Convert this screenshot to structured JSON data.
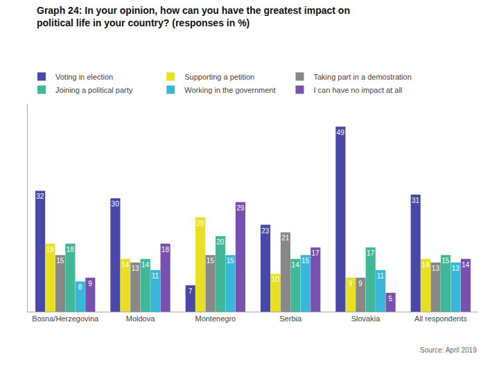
{
  "chart_data": {
    "type": "bar",
    "title": "Graph 24: In your opinion, how can you have the greatest impact on\npolitical life in your country? (responses in %)",
    "categories": [
      "Bosna/Herzegovina",
      "Moldova",
      "Montenegro",
      "Serbia",
      "Slovakia",
      "All respondents"
    ],
    "series": [
      {
        "name": "Voting in election",
        "color": "#4848a8",
        "values": [
          32,
          30,
          7,
          23,
          49,
          31
        ]
      },
      {
        "name": "Supporting a petition",
        "color": "#e8e020",
        "values": [
          18,
          14,
          25,
          10,
          9,
          14
        ]
      },
      {
        "name": "Taking part in a demostration",
        "color": "#888888",
        "values": [
          15,
          13,
          15,
          21,
          9,
          13
        ]
      },
      {
        "name": "Joining a political party",
        "color": "#40b898",
        "values": [
          18,
          14,
          20,
          14,
          17,
          15
        ]
      },
      {
        "name": "Working in the government",
        "color": "#38b8d8",
        "values": [
          8,
          11,
          15,
          15,
          11,
          13
        ]
      },
      {
        "name": "I can have no impact at all",
        "color": "#7850b0",
        "values": [
          9,
          18,
          29,
          17,
          5,
          14
        ]
      }
    ],
    "annotations": [
      "Source: April 2019"
    ],
    "ylim": [
      0,
      55
    ],
    "tick_labels": "x",
    "grid": false,
    "legend": "top",
    "data_labels": true
  }
}
